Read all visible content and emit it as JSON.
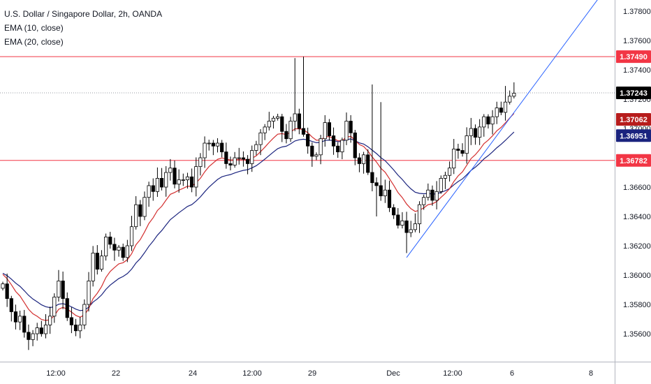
{
  "legend": {
    "symbol": "U.S. Dollar / Singapore Dollar, 2h, OANDA",
    "ema10": "EMA (10, close)",
    "ema20": "EMA (20, close)"
  },
  "colors": {
    "up_candle_fill": "#ffffff",
    "down_candle_fill": "#000000",
    "candle_outline": "#000000",
    "ema10": "#d32f2f",
    "ema20": "#1a237e",
    "hline": "#f23645",
    "trendline": "#2962ff",
    "price_line": "#9598a1",
    "current_tag": "#000000",
    "ema10_tag": "#b71c1c",
    "ema20_tag": "#1a237e",
    "level_tag": "#f23645"
  },
  "chart_data": {
    "type": "candlestick",
    "title": "U.S. Dollar / Singapore Dollar, 2h, OANDA",
    "ylim": [
      1.3545,
      1.379
    ],
    "y_ticks": [
      "1.37800",
      "1.37600",
      "1.37400",
      "1.37200",
      "1.37000",
      "1.36800",
      "1.36600",
      "1.36400",
      "1.36200",
      "1.36000",
      "1.35800",
      "1.35600"
    ],
    "x_ticks": [
      "12:00",
      "22",
      "24",
      "12:00",
      "29",
      "Dec",
      "12:00",
      "6",
      "8"
    ],
    "candle_count": 120,
    "start": {
      "open": 1.3591,
      "close": 1.3594
    },
    "closes": [
      1.3594,
      1.3584,
      1.3575,
      1.3568,
      1.3572,
      1.3561,
      1.3556,
      1.356,
      1.3564,
      1.356,
      1.3566,
      1.3572,
      1.3585,
      1.3596,
      1.3584,
      1.3571,
      1.3566,
      1.3562,
      1.3566,
      1.358,
      1.3596,
      1.3615,
      1.3604,
      1.3613,
      1.3626,
      1.3621,
      1.3617,
      1.3619,
      1.3612,
      1.362,
      1.3633,
      1.3648,
      1.364,
      1.3653,
      1.3661,
      1.3657,
      1.3666,
      1.366,
      1.367,
      1.3673,
      1.3662,
      1.3665,
      1.3665,
      1.3667,
      1.366,
      1.3674,
      1.368,
      1.369,
      1.369,
      1.3688,
      1.369,
      1.3684,
      1.3676,
      1.3675,
      1.368,
      1.368,
      1.3679,
      1.3676,
      1.3685,
      1.3689,
      1.3697,
      1.3701,
      1.3705,
      1.3707,
      1.3708,
      1.3698,
      1.3693,
      1.3705,
      1.371,
      1.37,
      1.3696,
      1.3688,
      1.3681,
      1.3682,
      1.3693,
      1.3704,
      1.3695,
      1.3688,
      1.3684,
      1.3692,
      1.3705,
      1.3697,
      1.368,
      1.3676,
      1.3682,
      1.367,
      1.3663,
      1.3661,
      1.3654,
      1.3658,
      1.3646,
      1.3641,
      1.3634,
      1.3637,
      1.3629,
      1.3631,
      1.3635,
      1.3648,
      1.3653,
      1.3658,
      1.3651,
      1.3657,
      1.3666,
      1.3668,
      1.3673,
      1.3686,
      1.3685,
      1.3683,
      1.3695,
      1.37,
      1.3694,
      1.3701,
      1.3708,
      1.3703,
      1.3708,
      1.3714,
      1.3711,
      1.3718,
      1.3722,
      1.3724
    ],
    "ema10_current": 1.37062,
    "ema20_current": 1.36951,
    "current_price": 1.37243,
    "horizontal_levels": [
      1.3749,
      1.36782
    ],
    "trendline": {
      "from_candle": 94,
      "from_price": 1.3612,
      "to_candle": 139,
      "to_price": 1.379
    }
  },
  "axis_tags": {
    "resistance": "1.37490",
    "current": "1.37243",
    "ema10": "1.37062",
    "ema20": "1.36951",
    "support": "1.36782"
  }
}
